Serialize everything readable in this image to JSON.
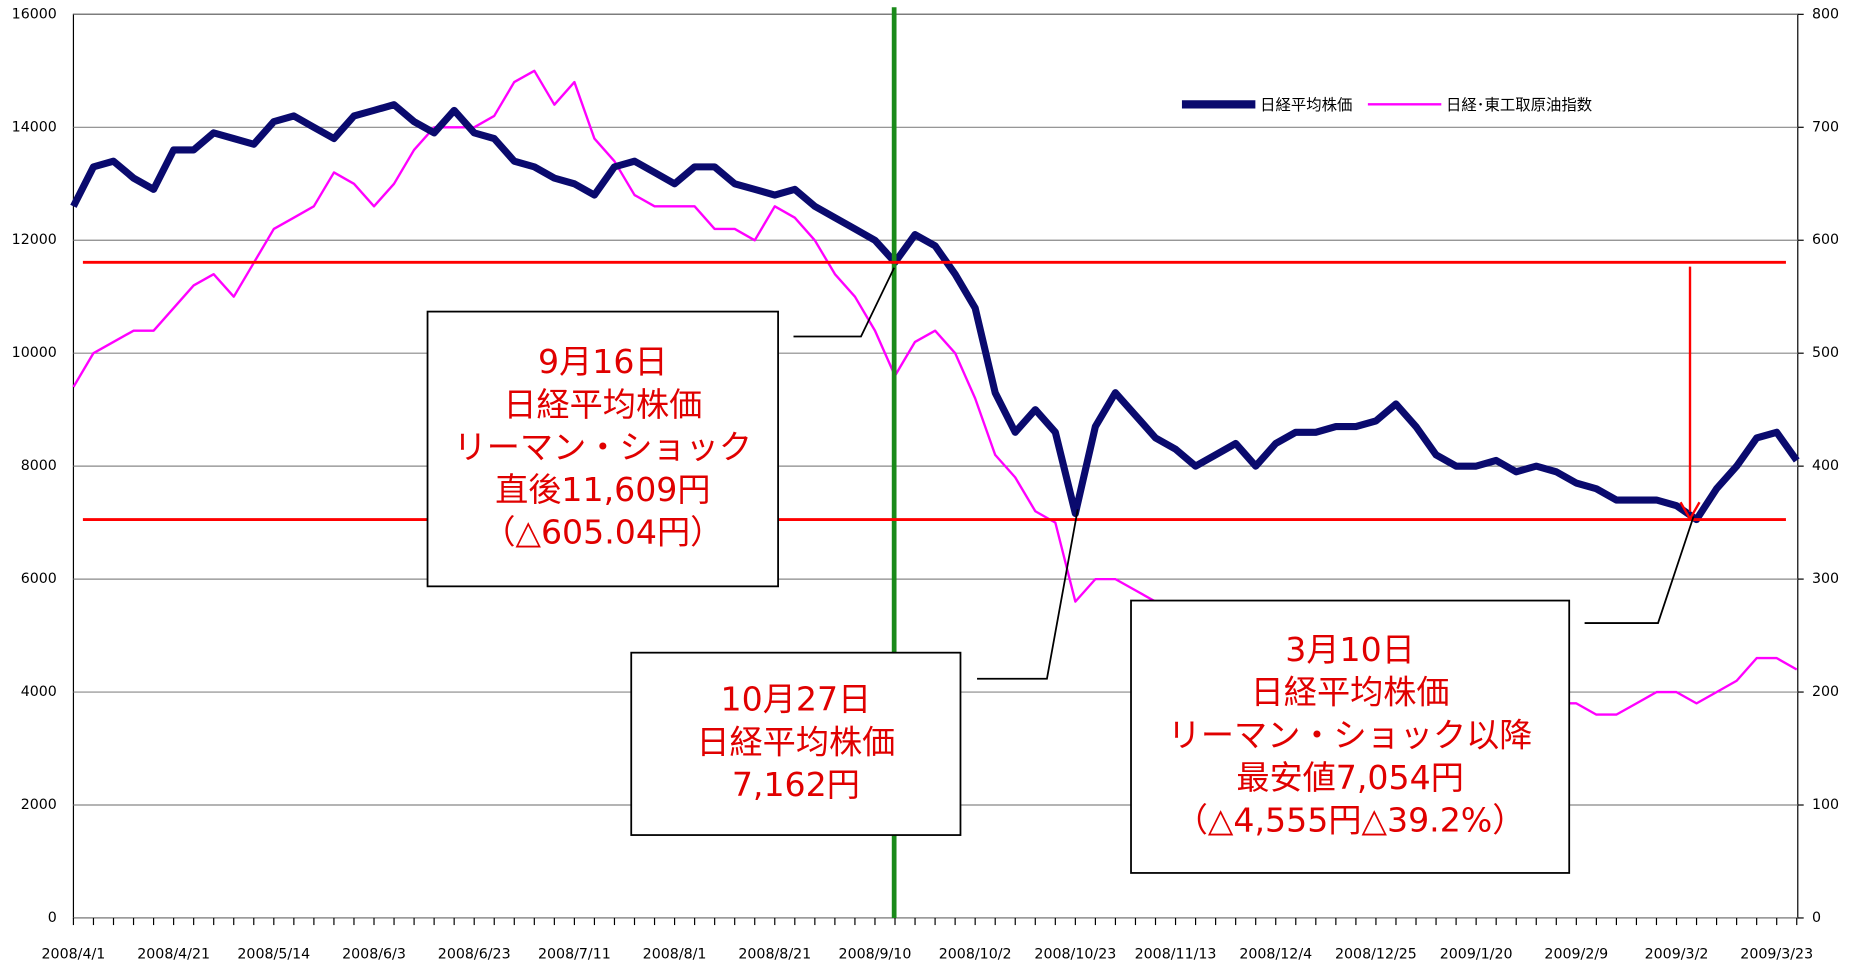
{
  "chart_data": {
    "type": "line",
    "categories": [
      "2008/4/1",
      null,
      null,
      null,
      null,
      "2008/4/21",
      null,
      null,
      null,
      null,
      "2008/5/14",
      null,
      null,
      null,
      null,
      "2008/6/3",
      null,
      null,
      null,
      null,
      "2008/6/23",
      null,
      null,
      null,
      null,
      "2008/7/11",
      null,
      null,
      null,
      null,
      "2008/8/1",
      null,
      null,
      null,
      null,
      "2008/8/21",
      null,
      null,
      null,
      null,
      "2008/9/10",
      null,
      null,
      null,
      null,
      "2008/10/2",
      null,
      null,
      null,
      null,
      "2008/10/23",
      null,
      null,
      null,
      null,
      "2008/11/13",
      null,
      null,
      null,
      null,
      "2008/12/4",
      null,
      null,
      null,
      null,
      "2008/12/25",
      null,
      null,
      null,
      null,
      "2009/1/20",
      null,
      null,
      null,
      null,
      "2009/2/9",
      null,
      null,
      null,
      null,
      "2009/3/2",
      null,
      null,
      null,
      null,
      "2009/3/23",
      null
    ],
    "series": [
      {
        "name": "日経平均株価",
        "color": "#0a0a6e",
        "values": [
          12600,
          13300,
          13400,
          13100,
          12900,
          13600,
          13600,
          13900,
          13800,
          13700,
          14100,
          14200,
          14000,
          13800,
          14200,
          14300,
          14400,
          14100,
          13900,
          14300,
          13900,
          13800,
          13400,
          13300,
          13100,
          13000,
          12800,
          13300,
          13400,
          13200,
          13000,
          13300,
          13300,
          13000,
          12900,
          12800,
          12900,
          12600,
          12400,
          12200,
          12000,
          11609,
          12100,
          11900,
          11400,
          10800,
          9300,
          8600,
          9000,
          8600,
          7162,
          8700,
          9300,
          8900,
          8500,
          8300,
          8000,
          8200,
          8400,
          8000,
          8400,
          8600,
          8600,
          8700,
          8700,
          8800,
          9100,
          8700,
          8200,
          8000,
          8000,
          8100,
          7900,
          8000,
          7900,
          7700,
          7600,
          7400,
          7400,
          7400,
          7300,
          7054,
          7600,
          8000,
          8500,
          8600,
          8100
        ]
      },
      {
        "name": "日経･東工取原油指数",
        "color": "#ff00ff",
        "axis": "y2",
        "values": [
          470,
          500,
          510,
          520,
          520,
          540,
          560,
          570,
          550,
          580,
          610,
          620,
          630,
          660,
          650,
          630,
          650,
          680,
          700,
          700,
          700,
          710,
          740,
          750,
          720,
          740,
          690,
          670,
          640,
          630,
          630,
          630,
          610,
          610,
          600,
          630,
          620,
          600,
          570,
          550,
          520,
          480,
          510,
          520,
          500,
          460,
          410,
          390,
          360,
          350,
          280,
          300,
          300,
          290,
          280,
          270,
          260,
          250,
          250,
          240,
          230,
          230,
          220,
          220,
          210,
          210,
          210,
          200,
          200,
          210,
          200,
          200,
          200,
          190,
          190,
          190,
          180,
          180,
          190,
          200,
          200,
          190,
          200,
          210,
          230,
          230,
          220
        ]
      }
    ],
    "ylim": [
      0,
      16000
    ],
    "yticks": [
      0,
      2000,
      4000,
      6000,
      8000,
      10000,
      12000,
      14000,
      16000
    ],
    "y2lim": [
      0,
      800
    ],
    "y2ticks": [
      0,
      100,
      200,
      300,
      400,
      500,
      600,
      700,
      800
    ],
    "grid": true,
    "legend": "top-right",
    "reference_lines": [
      {
        "value": 11609,
        "color": "#ff0000"
      },
      {
        "value": 7054,
        "color": "#ff0000"
      }
    ],
    "annotations": [
      {
        "lines": [
          "9月16日",
          "日経平均株価",
          "リーマン・ショック",
          "直後11,609円",
          "（△605.04円）"
        ]
      },
      {
        "lines": [
          "10月27日",
          "日経平均株価",
          "7,162円"
        ]
      },
      {
        "lines": [
          "3月10日",
          "日経平均株価",
          "リーマン・ショック以降",
          "最安値7,054円",
          "（△4,555円△39.2%）"
        ]
      }
    ]
  }
}
